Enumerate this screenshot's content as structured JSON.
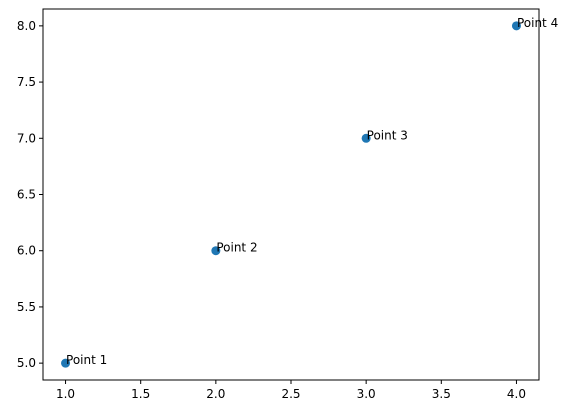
{
  "chart_data": {
    "type": "scatter",
    "title": "",
    "xlabel": "",
    "ylabel": "",
    "x": [
      1,
      2,
      3,
      4
    ],
    "y": [
      5,
      6,
      7,
      8
    ],
    "labels": [
      "Point 1",
      "Point 2",
      "Point 3",
      "Point 4"
    ],
    "label_colors": [
      "#000000",
      "#000000",
      "#000000",
      "#b22222"
    ],
    "label_font_weights": [
      "normal",
      "normal",
      "normal",
      "normal"
    ],
    "marker_color": "#1f77b4",
    "xlim": [
      0.85,
      4.15
    ],
    "ylim": [
      4.85,
      8.15
    ],
    "xticks": [
      1.0,
      1.5,
      2.0,
      2.5,
      3.0,
      3.5,
      4.0
    ],
    "xtick_labels": [
      "1.0",
      "1.5",
      "2.0",
      "2.5",
      "3.0",
      "3.5",
      "4.0"
    ],
    "yticks": [
      5.0,
      5.5,
      6.0,
      6.5,
      7.0,
      7.5,
      8.0
    ],
    "ytick_labels": [
      "5.0",
      "5.5",
      "6.0",
      "6.5",
      "7.0",
      "7.5",
      "8.0"
    ],
    "grid": false
  }
}
